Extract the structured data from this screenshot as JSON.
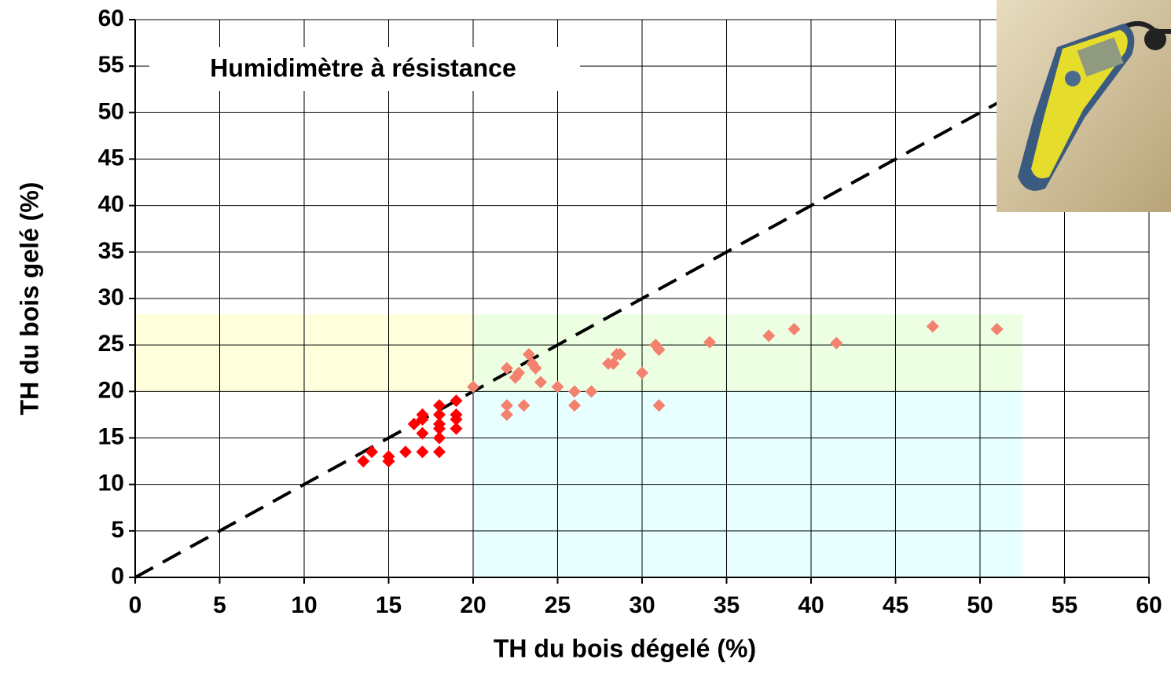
{
  "chart_data": {
    "type": "scatter",
    "annotation": "Humidimètre à résistance",
    "xlabel": "TH du bois dégelé (%)",
    "ylabel": "TH du bois gelé (%)",
    "xlim": [
      0,
      60
    ],
    "ylim": [
      0,
      60
    ],
    "xticks": [
      0,
      5,
      10,
      15,
      20,
      25,
      30,
      35,
      40,
      45,
      50,
      55,
      60
    ],
    "yticks": [
      0,
      5,
      10,
      15,
      20,
      25,
      30,
      35,
      40,
      45,
      50,
      55,
      60
    ],
    "grid": true,
    "regions": [
      {
        "x": [
          0,
          20
        ],
        "y": [
          20,
          28.3
        ],
        "color": "#ffffdc"
      },
      {
        "x": [
          20,
          52.5
        ],
        "y": [
          20,
          28.3
        ],
        "color": "#ecffe2"
      },
      {
        "x": [
          20,
          52.5
        ],
        "y": [
          0,
          20
        ],
        "color": "#e8ffff"
      }
    ],
    "reference_line": {
      "x": [
        0,
        52
      ],
      "y": [
        0,
        52
      ],
      "color": "#000000"
    },
    "series": [
      {
        "color": "#ff0000",
        "x": [
          13.5,
          14,
          15,
          15,
          16,
          16.5,
          17,
          17,
          17,
          17,
          18,
          18,
          18,
          18,
          18,
          18,
          19,
          19,
          19,
          19
        ],
        "values": [
          12.5,
          13.5,
          12.5,
          13,
          13.5,
          16.5,
          17,
          17.5,
          15.5,
          13.5,
          18.5,
          17.5,
          16.5,
          16,
          15,
          13.5,
          19,
          17.5,
          17,
          16
        ]
      },
      {
        "color": "#f4806e",
        "x": [
          20,
          22,
          22,
          22,
          22.5,
          22.7,
          23,
          23.3,
          23.5,
          23.7,
          24,
          25,
          26,
          26,
          27,
          28,
          28.3,
          28.5,
          28.7,
          30,
          30.8,
          31,
          31,
          34,
          37.5,
          39,
          41.5,
          47.2,
          51
        ],
        "values": [
          20.5,
          22.5,
          18.5,
          17.5,
          21.5,
          22,
          18.5,
          24,
          23,
          22.5,
          21,
          20.5,
          20,
          18.5,
          20,
          23,
          23,
          24,
          24,
          22,
          25,
          18.5,
          24.5,
          25.3,
          26,
          26.7,
          25.2,
          27,
          26.7
        ]
      }
    ]
  }
}
